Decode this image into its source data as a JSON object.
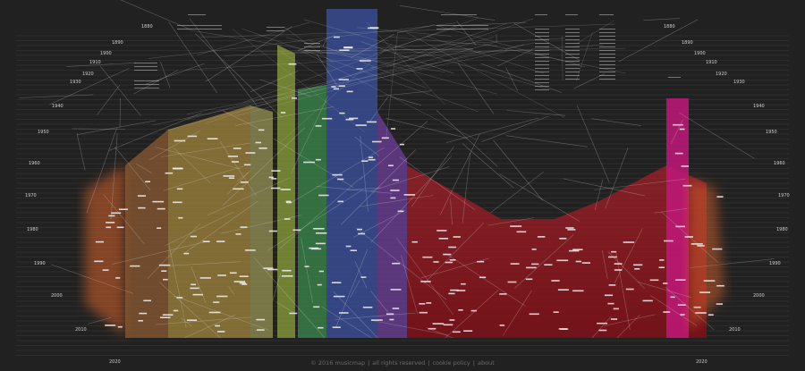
{
  "decades_left": [
    "1880",
    "1890",
    "1900",
    "1910",
    "1920",
    "1930",
    "1940",
    "1950",
    "1960",
    "1970",
    "1980",
    "1990",
    "2000",
    "2010",
    "2020"
  ],
  "decades_right": [
    "1880",
    "1890",
    "1900",
    "1910",
    "1920",
    "1930",
    "1940",
    "1950",
    "1960",
    "1970",
    "1980",
    "1990",
    "2000",
    "2010",
    "2020"
  ],
  "footer": {
    "copyright": "© 2016 musicmap",
    "rights": "all rights reserved",
    "cookie": "cookie policy",
    "about": "about"
  },
  "colors": {
    "background": "#222121",
    "orange": "#d4602a",
    "brown": "#8c5a32",
    "tan": "#a8893f",
    "khaki": "#9d9a58",
    "olive": "#8ea03a",
    "green": "#3a8a4c",
    "blue": "#3a4f9c",
    "purple": "#6d3f9a",
    "red": "#b4202a",
    "magenta": "#c0187a"
  }
}
